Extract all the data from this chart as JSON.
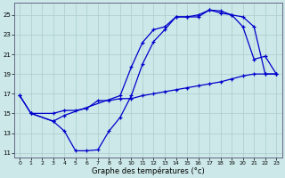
{
  "background_color": "#cce8e8",
  "grid_color": "#aacccc",
  "line_color": "#0000cc",
  "xlabel": "Graphe des températures (°c)",
  "xlim": [
    -0.5,
    23.5
  ],
  "ylim": [
    10.5,
    26.2
  ],
  "yticks": [
    11,
    13,
    15,
    17,
    19,
    21,
    23,
    25
  ],
  "xticks": [
    0,
    1,
    2,
    3,
    4,
    5,
    6,
    7,
    8,
    9,
    10,
    11,
    12,
    13,
    14,
    15,
    16,
    17,
    18,
    19,
    20,
    21,
    22,
    23
  ],
  "curve1_x": [
    0,
    1,
    3,
    4,
    5,
    6,
    7,
    8,
    9,
    10,
    11,
    12,
    13,
    14,
    15,
    16,
    17,
    18,
    19,
    20,
    21,
    22,
    23
  ],
  "curve1_y": [
    16.8,
    15.0,
    14.2,
    13.2,
    11.2,
    11.2,
    11.3,
    13.2,
    14.6,
    16.8,
    20.0,
    22.3,
    23.5,
    24.8,
    24.8,
    24.8,
    25.5,
    25.4,
    25.0,
    23.8,
    20.5,
    20.8,
    19.0
  ],
  "curve2_x": [
    0,
    1,
    3,
    4,
    5,
    6,
    7,
    8,
    9,
    10,
    11,
    12,
    13,
    14,
    15,
    16,
    17,
    18,
    19,
    20,
    21,
    22,
    23
  ],
  "curve2_y": [
    16.8,
    15.0,
    15.0,
    15.3,
    15.3,
    15.5,
    16.3,
    16.3,
    16.5,
    16.5,
    16.8,
    17.0,
    17.2,
    17.4,
    17.6,
    17.8,
    18.0,
    18.2,
    18.5,
    18.8,
    19.0,
    19.0,
    19.0
  ],
  "curve3_x": [
    1,
    3,
    4,
    9,
    10,
    11,
    12,
    13,
    14,
    15,
    16,
    17,
    18,
    19,
    20,
    21,
    22,
    23
  ],
  "curve3_y": [
    15.0,
    14.2,
    14.8,
    16.8,
    19.7,
    22.2,
    23.5,
    23.8,
    24.8,
    24.8,
    25.0,
    25.5,
    25.2,
    25.0,
    24.8,
    23.8,
    19.0,
    19.0
  ]
}
